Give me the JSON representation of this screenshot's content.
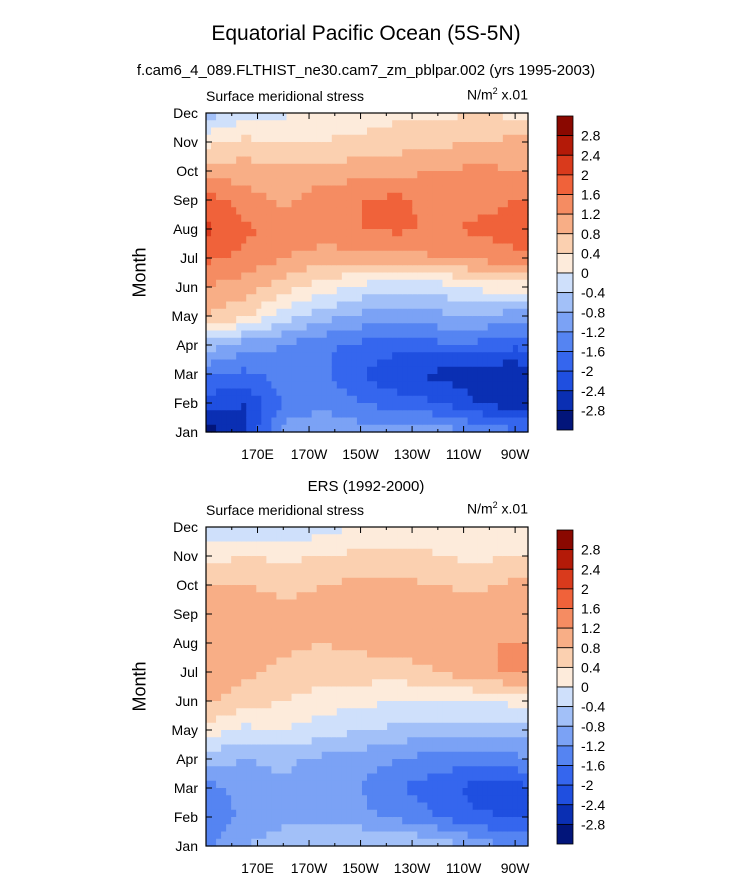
{
  "main_title": "Equatorial Pacific Ocean (5S-5N)",
  "subtitle": "f.cam6_4_089.FLTHIST_ne30.cam7_zm_pblpar.002 (yrs 1995-2003)",
  "colors": {
    "levels": [
      -2.8,
      -2.4,
      -2,
      -1.6,
      -1.2,
      -0.8,
      -0.4,
      0,
      0.4,
      0.8,
      1.2,
      1.6,
      2,
      2.4,
      2.8
    ],
    "palette": [
      "#02157a",
      "#0a2fb3",
      "#1f4fe0",
      "#3566ee",
      "#5584f2",
      "#7ba2f5",
      "#a2c0f8",
      "#cfe0fb",
      "#fdebdb",
      "#fbd0b0",
      "#f8ae86",
      "#f58c62",
      "#f0623a",
      "#d93a1c",
      "#b41a08",
      "#8a0800"
    ]
  },
  "chart_data": [
    {
      "type": "heatmap",
      "title": "",
      "left_label": "Surface meridional stress",
      "units_label": "N/m",
      "units_sup": "2",
      "units_suffix": " x.01",
      "ylabel": "Month",
      "xlabel": "",
      "x_ticks": [
        "170E",
        "170W",
        "150W",
        "130W",
        "110W",
        "90W"
      ],
      "x_tick_lon": [
        170,
        190,
        210,
        230,
        250,
        270
      ],
      "xlim": [
        150,
        275
      ],
      "y_ticks": [
        "Jan",
        "Feb",
        "Mar",
        "Apr",
        "May",
        "Jun",
        "Jul",
        "Aug",
        "Sep",
        "Oct",
        "Nov",
        "Dec"
      ],
      "colorbar_labels": [
        "2.8",
        "2.4",
        "2",
        "1.6",
        "1.2",
        "0.8",
        "0.4",
        "0",
        "-0.4",
        "-0.8",
        "-1.2",
        "-1.6",
        "-2",
        "-2.4",
        "-2.8"
      ],
      "x": [
        150,
        165,
        180,
        195,
        210,
        225,
        240,
        255,
        270,
        275
      ],
      "values": [
        [
          -3.0,
          -2.5,
          -1.0,
          -0.9,
          -1.0,
          -0.9,
          -1.0,
          -1.2,
          -1.5,
          -1.6
        ],
        [
          -2.2,
          -2.4,
          -1.6,
          -1.3,
          -1.6,
          -1.8,
          -2.0,
          -2.4,
          -2.7,
          -2.6
        ],
        [
          -1.5,
          -1.7,
          -1.4,
          -1.5,
          -2.0,
          -2.4,
          -2.5,
          -2.6,
          -2.8,
          -2.6
        ],
        [
          -0.6,
          -1.0,
          -1.2,
          -1.5,
          -1.7,
          -1.8,
          -1.7,
          -1.7,
          -1.9,
          -1.8
        ],
        [
          0.8,
          0.5,
          -0.2,
          -0.6,
          -0.9,
          -1.0,
          -0.9,
          -0.8,
          -1.0,
          -1.0
        ],
        [
          1.2,
          1.0,
          0.6,
          0.2,
          -0.1,
          -0.3,
          -0.2,
          0.1,
          0.2,
          0.2
        ],
        [
          1.7,
          1.5,
          1.2,
          1.0,
          1.0,
          1.0,
          1.2,
          1.3,
          1.5,
          1.5
        ],
        [
          2.1,
          1.7,
          1.4,
          1.5,
          1.6,
          1.7,
          1.5,
          1.7,
          1.8,
          1.8
        ],
        [
          1.8,
          1.4,
          1.1,
          1.4,
          1.6,
          1.7,
          1.4,
          1.4,
          1.6,
          1.6
        ],
        [
          1.0,
          1.0,
          0.9,
          1.0,
          1.0,
          1.1,
          1.2,
          1.3,
          1.2,
          1.2
        ],
        [
          0.3,
          0.5,
          0.4,
          0.4,
          0.5,
          0.6,
          0.7,
          0.8,
          0.9,
          0.9
        ],
        [
          -0.6,
          -0.2,
          -0.1,
          0.2,
          0.2,
          0.3,
          0.3,
          0.4,
          0.3,
          0.3
        ]
      ]
    },
    {
      "type": "heatmap",
      "title": "ERS (1992-2000)",
      "left_label": "Surface meridional stress",
      "units_label": "N/m",
      "units_sup": "2",
      "units_suffix": " x.01",
      "ylabel": "Month",
      "xlabel": "",
      "x_ticks": [
        "170E",
        "170W",
        "150W",
        "130W",
        "110W",
        "90W"
      ],
      "x_tick_lon": [
        170,
        190,
        210,
        230,
        250,
        270
      ],
      "xlim": [
        150,
        275
      ],
      "y_ticks": [
        "Jan",
        "Feb",
        "Mar",
        "Apr",
        "May",
        "Jun",
        "Jul",
        "Aug",
        "Sep",
        "Oct",
        "Nov",
        "Dec"
      ],
      "colorbar_labels": [
        "2.8",
        "2.4",
        "2",
        "1.6",
        "1.2",
        "0.8",
        "0.4",
        "0",
        "-0.4",
        "-0.8",
        "-1.2",
        "-1.6",
        "-2",
        "-2.4",
        "-2.8"
      ],
      "x": [
        150,
        165,
        180,
        195,
        210,
        225,
        240,
        255,
        270,
        275
      ],
      "values": [
        [
          -1.3,
          -0.8,
          -0.6,
          -0.5,
          -0.3,
          -0.3,
          -0.5,
          -0.9,
          -1.3,
          -1.3
        ],
        [
          -1.5,
          -1.1,
          -0.9,
          -0.9,
          -1.1,
          -1.3,
          -1.6,
          -1.9,
          -2.1,
          -2.0
        ],
        [
          -1.4,
          -1.0,
          -0.9,
          -1.0,
          -1.2,
          -1.6,
          -1.8,
          -2.2,
          -2.2,
          -2.0
        ],
        [
          -0.6,
          -0.8,
          -0.7,
          -0.9,
          -1.0,
          -1.2,
          -1.4,
          -1.4,
          -1.3,
          -1.2
        ],
        [
          0.2,
          -0.1,
          0.0,
          -0.2,
          -0.4,
          -0.5,
          -0.6,
          -0.6,
          -0.6,
          -0.6
        ],
        [
          0.9,
          0.6,
          0.4,
          0.2,
          0.1,
          0.0,
          0.0,
          0.0,
          0.1,
          0.1
        ],
        [
          1.0,
          0.9,
          0.7,
          0.6,
          0.6,
          0.6,
          0.8,
          1.1,
          1.3,
          1.3
        ],
        [
          1.1,
          1.0,
          0.9,
          0.8,
          0.9,
          1.0,
          1.0,
          1.2,
          1.2,
          1.2
        ],
        [
          1.2,
          1.1,
          0.9,
          0.9,
          1.0,
          1.1,
          1.0,
          1.1,
          1.0,
          1.0
        ],
        [
          0.8,
          0.8,
          0.7,
          0.8,
          0.9,
          0.9,
          0.8,
          0.7,
          0.9,
          0.9
        ],
        [
          0.2,
          0.4,
          0.3,
          0.4,
          0.5,
          0.5,
          0.4,
          0.3,
          0.4,
          0.4
        ],
        [
          -0.3,
          -0.4,
          -0.3,
          -0.2,
          0.1,
          0.2,
          0.3,
          0.2,
          0.1,
          0.1
        ]
      ]
    }
  ]
}
